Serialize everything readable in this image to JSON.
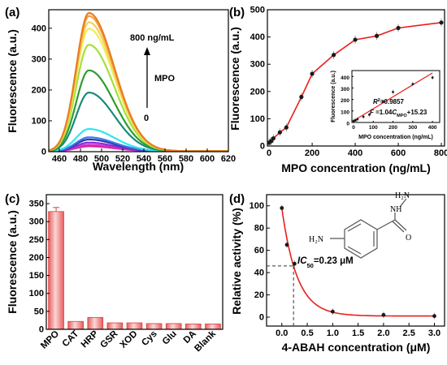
{
  "colors": {
    "bar_fill": "#ef7070",
    "bar_highlight": "#fbd6d6",
    "fit_line": "#e8201c",
    "marker": "#1a1a1a",
    "molecule": "#555555"
  },
  "chart_data": [
    {
      "panel": "(a)",
      "type": "line",
      "xlabel": "Wavelength (nm)",
      "ylabel": "Fluorescence (a.u.)",
      "xlim": [
        450,
        620
      ],
      "ylim": [
        0,
        460
      ],
      "xticks": [
        460,
        480,
        500,
        520,
        540,
        560,
        580,
        600,
        620
      ],
      "yticks": [
        0,
        100,
        200,
        300,
        400
      ],
      "peak_x": 488,
      "annotations": {
        "top": "800 ng/mL",
        "middle": "MPO",
        "bottom": "0"
      },
      "series": [
        {
          "color": "#e87d1e",
          "peak": 448
        },
        {
          "color": "#f2a04a",
          "peak": 438
        },
        {
          "color": "#f6cf5a",
          "peak": 418
        },
        {
          "color": "#ecef55",
          "peak": 397
        },
        {
          "color": "#a5df3b",
          "peak": 345
        },
        {
          "color": "#2d9d2d",
          "peak": 262
        },
        {
          "color": "#1b8a78",
          "peak": 190
        },
        {
          "color": "#2ee6f0",
          "peak": 72
        },
        {
          "color": "#3a79ea",
          "peak": 45
        },
        {
          "color": "#2a3aa4",
          "peak": 38
        },
        {
          "color": "#8a2bd8",
          "peak": 28
        },
        {
          "color": "#d42fcf",
          "peak": 21
        },
        {
          "color": "#d8209a",
          "peak": 16
        }
      ]
    },
    {
      "panel": "(b)",
      "type": "line",
      "xlabel": "MPO concentration (ng/mL)",
      "ylabel": "Fluorescence (a.u.)",
      "xlim": [
        -8,
        815
      ],
      "ylim": [
        0,
        500
      ],
      "xticks": [
        0,
        200,
        400,
        600,
        800
      ],
      "yticks": [
        0,
        100,
        200,
        300,
        400,
        500
      ],
      "points": [
        {
          "x": 0,
          "y": 12
        },
        {
          "x": 5,
          "y": 15
        },
        {
          "x": 10,
          "y": 18
        },
        {
          "x": 20,
          "y": 28
        },
        {
          "x": 50,
          "y": 50
        },
        {
          "x": 80,
          "y": 68
        },
        {
          "x": 150,
          "y": 180
        },
        {
          "x": 200,
          "y": 265
        },
        {
          "x": 300,
          "y": 334
        },
        {
          "x": 400,
          "y": 390
        },
        {
          "x": 500,
          "y": 404
        },
        {
          "x": 600,
          "y": 433
        },
        {
          "x": 800,
          "y": 453
        }
      ],
      "inset": {
        "type": "scatter",
        "xlabel": "MPO concentration (ng/mL)",
        "ylabel": "Fluorescence (a.u.)",
        "xlim": [
          0,
          420
        ],
        "ylim": [
          0,
          430
        ],
        "xticks": [
          0,
          100,
          200,
          300,
          400
        ],
        "yticks": [
          0,
          100,
          200,
          300,
          400
        ],
        "points": [
          {
            "x": 0,
            "y": 12
          },
          {
            "x": 5,
            "y": 15
          },
          {
            "x": 10,
            "y": 18
          },
          {
            "x": 20,
            "y": 28
          },
          {
            "x": 50,
            "y": 50
          },
          {
            "x": 80,
            "y": 68
          },
          {
            "x": 150,
            "y": 180
          },
          {
            "x": 200,
            "y": 265
          },
          {
            "x": 300,
            "y": 334
          },
          {
            "x": 400,
            "y": 390
          }
        ],
        "fit": {
          "slope": 1.04,
          "intercept": 15.23
        },
        "r2_label": "R",
        "r2_sup": "2",
        "r2_value": "=0.9857",
        "eq_prefix": "F",
        "eq_mid": " =1.04",
        "eq_c": "C",
        "eq_sub": "MPO",
        "eq_tail": "+15.23"
      }
    },
    {
      "panel": "(c)",
      "type": "bar",
      "xlabel": "",
      "ylabel": "Fluorescence (a.u.)",
      "ylim": [
        0,
        375
      ],
      "yticks": [
        0,
        50,
        100,
        150,
        200,
        250,
        300,
        350
      ],
      "categories": [
        "MPO",
        "CAT",
        "HRP",
        "GSR",
        "XOD",
        "Cys",
        "Glu",
        "DA",
        "Blank"
      ],
      "values": [
        328,
        22,
        33,
        18,
        18,
        16,
        16,
        15,
        15
      ]
    },
    {
      "panel": "(d)",
      "type": "scatter",
      "xlabel": "4-ABAH concentration (μM)",
      "ylabel": "Relative activity (%)",
      "xlim": [
        -0.3,
        3.2
      ],
      "ylim": [
        -8,
        110
      ],
      "xticks": [
        0.0,
        0.5,
        1.0,
        1.5,
        2.0,
        2.5,
        3.0
      ],
      "xtick_labels": [
        "0.0",
        "0.5",
        "1.0",
        "1.5",
        "2.0",
        "2.5",
        "3.0"
      ],
      "yticks": [
        0,
        20,
        40,
        60,
        80,
        100
      ],
      "points": [
        {
          "x": 0.0,
          "y": 98
        },
        {
          "x": 0.1,
          "y": 65
        },
        {
          "x": 0.25,
          "y": 48
        },
        {
          "x": 1.0,
          "y": 5
        },
        {
          "x": 2.0,
          "y": 2
        },
        {
          "x": 3.0,
          "y": 1
        }
      ],
      "ic50": {
        "x": 0.23,
        "y": 46,
        "label_prefix": "IC",
        "label_sub": "50",
        "label_value": "=0.23 μM"
      },
      "molecule": {
        "amine_left": "H₂N",
        "hydrazide_top": "H₂N",
        "nh": "NH",
        "carbonyl": "O"
      }
    }
  ]
}
